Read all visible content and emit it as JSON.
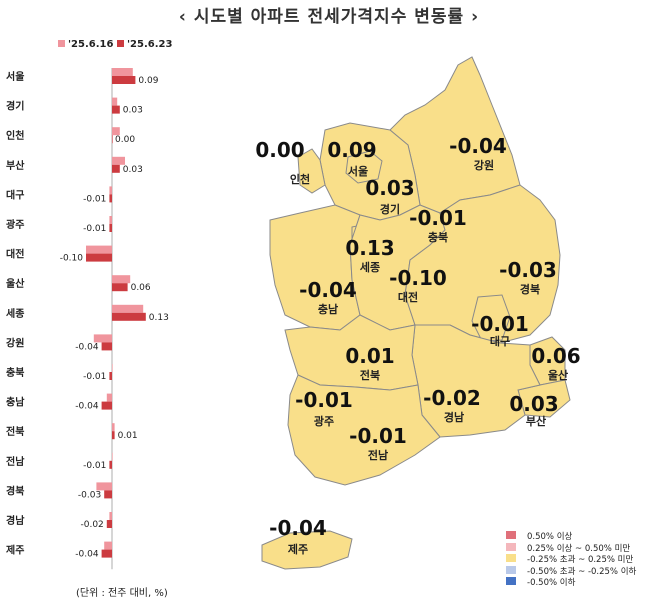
{
  "title": "‹  시도별 아파트 전세가격지수 변동률  ›",
  "unit_note": "(단위 : 전주 대비, %)",
  "colors": {
    "prev": "#f0959d",
    "curr": "#cc3b40",
    "map_fill": "#f9df8a"
  },
  "chart_data": {
    "type": "bar",
    "orientation": "horizontal",
    "categories": [
      "서울",
      "경기",
      "인천",
      "부산",
      "대구",
      "광주",
      "대전",
      "울산",
      "세종",
      "강원",
      "충북",
      "충남",
      "전북",
      "전남",
      "경북",
      "경남",
      "제주"
    ],
    "series": [
      {
        "name": "'25.6.16",
        "values": [
          0.08,
          0.02,
          0.03,
          0.05,
          -0.01,
          -0.01,
          -0.1,
          0.07,
          0.12,
          -0.07,
          0.0,
          -0.02,
          0.01,
          0.0,
          -0.06,
          -0.01,
          -0.03
        ]
      },
      {
        "name": "'25.6.23",
        "values": [
          0.09,
          0.03,
          0.0,
          0.03,
          -0.01,
          -0.01,
          -0.1,
          0.06,
          0.13,
          -0.04,
          -0.01,
          -0.04,
          0.01,
          -0.01,
          -0.03,
          -0.02,
          -0.04
        ]
      }
    ],
    "data_labels": [
      "0.09",
      "0.03",
      "0.00",
      "0.03",
      "-0.01",
      "-0.01",
      "-0.10",
      "0.06",
      "0.13",
      "-0.04",
      "-0.01",
      "-0.04",
      "0.01",
      "-0.01",
      "-0.03",
      "-0.02",
      "-0.04"
    ],
    "legend": [
      "'25.6.16",
      "'25.6.23"
    ]
  },
  "map": {
    "regions": [
      {
        "name": "인천",
        "value": "0.00"
      },
      {
        "name": "서울",
        "value": "0.09"
      },
      {
        "name": "강원",
        "value": "-0.04"
      },
      {
        "name": "경기",
        "value": "0.03"
      },
      {
        "name": "충북",
        "value": "-0.01"
      },
      {
        "name": "세종",
        "value": "0.13"
      },
      {
        "name": "대전",
        "value": "-0.10"
      },
      {
        "name": "충남",
        "value": "-0.04"
      },
      {
        "name": "경북",
        "value": "-0.03"
      },
      {
        "name": "대구",
        "value": "-0.01"
      },
      {
        "name": "전북",
        "value": "0.01"
      },
      {
        "name": "울산",
        "value": "0.06"
      },
      {
        "name": "광주",
        "value": "-0.01"
      },
      {
        "name": "경남",
        "value": "-0.02"
      },
      {
        "name": "부산",
        "value": "0.03"
      },
      {
        "name": "전남",
        "value": "-0.01"
      },
      {
        "name": "제주",
        "value": "-0.04"
      }
    ]
  },
  "legend_items": [
    {
      "label": "0.50% 이상",
      "color": "#e0707a"
    },
    {
      "label": "0.25% 이상 ~ 0.50% 미만",
      "color": "#f4b7bc"
    },
    {
      "label": "-0.25% 초과 ~ 0.25% 미만",
      "color": "#f9df8a"
    },
    {
      "label": "-0.50% 초과 ~ -0.25% 이하",
      "color": "#b9c9e9"
    },
    {
      "label": "-0.50% 이하",
      "color": "#4472c4"
    }
  ]
}
